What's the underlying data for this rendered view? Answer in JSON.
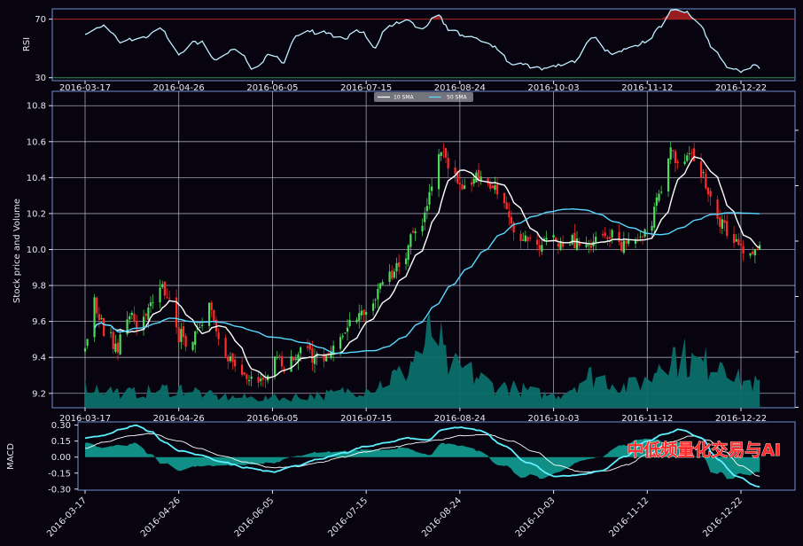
{
  "watermark": "中低频量化交易与AI",
  "colors": {
    "background": "#07040f",
    "frame": "#6f8fd0",
    "grid": "#c8c8d8",
    "rsi_line": "#bfefff",
    "rsi_overbought": "#b22222",
    "rsi_oversold": "#2e8b57",
    "up_candle": "#4ddc5a",
    "down_candle": "#ff2b2b",
    "sma_fast": "#ffffff",
    "sma_slow": "#5ad8ff",
    "volume_fill": "#0b6f6a",
    "macd_line": "#5ff0ff",
    "signal_line": "#ffffff",
    "macd_fill": "#11a89a"
  },
  "chart_data": [
    {
      "type": "line",
      "panel": "rsi",
      "ylabel": "RSI",
      "ylim": [
        28,
        77
      ],
      "yticks": [
        30,
        70
      ],
      "threshold_lines": [
        70,
        30
      ],
      "date_ticks": [
        "2016-03-17",
        "2016-04-26",
        "2016-06-05",
        "2016-07-15",
        "2016-08-24",
        "2016-10-03",
        "2016-11-12",
        "2016-12-22"
      ],
      "x_start": "2016-03-17",
      "x_end": "2016-12-30",
      "series": [
        {
          "anchors": [
            [
              "2016-03-17",
              60
            ],
            [
              "2016-03-25",
              65
            ],
            [
              "2016-04-01",
              55
            ],
            [
              "2016-04-10",
              57
            ],
            [
              "2016-04-18",
              63
            ],
            [
              "2016-04-26",
              47
            ],
            [
              "2016-05-05",
              55
            ],
            [
              "2016-05-12",
              42
            ],
            [
              "2016-05-20",
              50
            ],
            [
              "2016-05-28",
              36
            ],
            [
              "2016-06-05",
              46
            ],
            [
              "2016-06-10",
              40
            ],
            [
              "2016-06-15",
              59
            ],
            [
              "2016-06-25",
              62
            ],
            [
              "2016-07-05",
              57
            ],
            [
              "2016-07-12",
              63
            ],
            [
              "2016-07-18",
              50
            ],
            [
              "2016-07-25",
              65
            ],
            [
              "2016-08-01",
              69
            ],
            [
              "2016-08-08",
              63
            ],
            [
              "2016-08-14",
              74
            ],
            [
              "2016-08-20",
              62
            ],
            [
              "2016-08-28",
              58
            ],
            [
              "2016-09-06",
              52
            ],
            [
              "2016-09-16",
              40
            ],
            [
              "2016-09-25",
              37
            ],
            [
              "2016-10-03",
              38
            ],
            [
              "2016-10-12",
              41
            ],
            [
              "2016-10-20",
              57
            ],
            [
              "2016-10-28",
              46
            ],
            [
              "2016-11-04",
              50
            ],
            [
              "2016-11-12",
              55
            ],
            [
              "2016-11-17",
              65
            ],
            [
              "2016-11-23",
              76
            ],
            [
              "2016-11-28",
              75
            ],
            [
              "2016-12-04",
              67
            ],
            [
              "2016-12-10",
              50
            ],
            [
              "2016-12-16",
              38
            ],
            [
              "2016-12-22",
              35
            ],
            [
              "2016-12-30",
              38
            ]
          ]
        }
      ]
    },
    {
      "type": "candlestick",
      "panel": "price",
      "ylabel": "Stock price and Volume",
      "ylim": [
        9.12,
        10.88
      ],
      "yticks": [
        9.2,
        9.4,
        9.6,
        9.8,
        10.0,
        10.2,
        10.4,
        10.6,
        10.8
      ],
      "grid": true,
      "legend_position": "top-center",
      "date_ticks": [
        "2016-03-17",
        "2016-04-26",
        "2016-06-05",
        "2016-07-15",
        "2016-08-24",
        "2016-10-03",
        "2016-11-12",
        "2016-12-22"
      ],
      "x_start": "2016-03-17",
      "x_end": "2016-12-30",
      "close_anchors": [
        [
          "2016-03-17",
          9.44
        ],
        [
          "2016-03-21",
          9.7
        ],
        [
          "2016-03-25",
          9.57
        ],
        [
          "2016-03-30",
          9.46
        ],
        [
          "2016-04-04",
          9.63
        ],
        [
          "2016-04-09",
          9.6
        ],
        [
          "2016-04-14",
          9.67
        ],
        [
          "2016-04-18",
          9.82
        ],
        [
          "2016-04-22",
          9.73
        ],
        [
          "2016-04-26",
          9.52
        ],
        [
          "2016-04-30",
          9.47
        ],
        [
          "2016-05-04",
          9.53
        ],
        [
          "2016-05-09",
          9.68
        ],
        [
          "2016-05-14",
          9.48
        ],
        [
          "2016-05-18",
          9.37
        ],
        [
          "2016-05-23",
          9.3
        ],
        [
          "2016-05-29",
          9.27
        ],
        [
          "2016-06-03",
          9.28
        ],
        [
          "2016-06-07",
          9.42
        ],
        [
          "2016-06-10",
          9.31
        ],
        [
          "2016-06-14",
          9.38
        ],
        [
          "2016-06-18",
          9.46
        ],
        [
          "2016-06-23",
          9.4
        ],
        [
          "2016-06-28",
          9.43
        ],
        [
          "2016-07-03",
          9.5
        ],
        [
          "2016-07-08",
          9.58
        ],
        [
          "2016-07-13",
          9.66
        ],
        [
          "2016-07-18",
          9.7
        ],
        [
          "2016-07-22",
          9.83
        ],
        [
          "2016-07-26",
          9.86
        ],
        [
          "2016-07-30",
          9.92
        ],
        [
          "2016-08-04",
          10.07
        ],
        [
          "2016-08-08",
          10.16
        ],
        [
          "2016-08-12",
          10.35
        ],
        [
          "2016-08-16",
          10.56
        ],
        [
          "2016-08-20",
          10.46
        ],
        [
          "2016-08-24",
          10.35
        ],
        [
          "2016-08-28",
          10.38
        ],
        [
          "2016-09-02",
          10.4
        ],
        [
          "2016-09-07",
          10.35
        ],
        [
          "2016-09-12",
          10.22
        ],
        [
          "2016-09-17",
          10.07
        ],
        [
          "2016-09-21",
          10.06
        ],
        [
          "2016-09-26",
          10.03
        ],
        [
          "2016-10-03",
          10.05
        ],
        [
          "2016-10-08",
          10.03
        ],
        [
          "2016-10-13",
          10.05
        ],
        [
          "2016-10-18",
          10.02
        ],
        [
          "2016-10-23",
          10.08
        ],
        [
          "2016-10-28",
          10.08
        ],
        [
          "2016-11-02",
          10.03
        ],
        [
          "2016-11-07",
          10.07
        ],
        [
          "2016-11-12",
          10.1
        ],
        [
          "2016-11-17",
          10.3
        ],
        [
          "2016-11-22",
          10.55
        ],
        [
          "2016-11-26",
          10.47
        ],
        [
          "2016-11-30",
          10.52
        ],
        [
          "2016-12-05",
          10.43
        ],
        [
          "2016-12-09",
          10.26
        ],
        [
          "2016-12-14",
          10.13
        ],
        [
          "2016-12-18",
          10.05
        ],
        [
          "2016-12-22",
          10.0
        ],
        [
          "2016-12-26",
          9.99
        ],
        [
          "2016-12-30",
          10.01
        ]
      ],
      "series": [
        {
          "name": "10 SMA",
          "smoothing_days": 10
        },
        {
          "name": "50 SMA",
          "smoothing_days": 50
        }
      ],
      "volume_anchors": [
        [
          "2016-03-17",
          0.2
        ],
        [
          "2016-04-05",
          0.14
        ],
        [
          "2016-04-26",
          0.18
        ],
        [
          "2016-05-15",
          0.1
        ],
        [
          "2016-06-05",
          0.09
        ],
        [
          "2016-06-25",
          0.12
        ],
        [
          "2016-07-15",
          0.18
        ],
        [
          "2016-07-29",
          0.3
        ],
        [
          "2016-08-08",
          0.55
        ],
        [
          "2016-08-13",
          0.75
        ],
        [
          "2016-08-19",
          0.4
        ],
        [
          "2016-08-24",
          0.35
        ],
        [
          "2016-09-10",
          0.2
        ],
        [
          "2016-10-03",
          0.12
        ],
        [
          "2016-10-20",
          0.3
        ],
        [
          "2016-11-04",
          0.2
        ],
        [
          "2016-11-12",
          0.25
        ],
        [
          "2016-11-20",
          0.55
        ],
        [
          "2016-11-26",
          0.48
        ],
        [
          "2016-12-05",
          0.4
        ],
        [
          "2016-12-15",
          0.5
        ],
        [
          "2016-12-22",
          0.25
        ],
        [
          "2016-12-30",
          0.22
        ]
      ]
    },
    {
      "type": "line",
      "panel": "macd",
      "ylabel": "MACD",
      "ylim": [
        -0.31,
        0.33
      ],
      "yticks": [
        0.3,
        0.15,
        0.0,
        -0.15,
        -0.3
      ],
      "date_ticks": [
        "2016-03-17",
        "2016-04-26",
        "2016-06-05",
        "2016-07-15",
        "2016-08-24",
        "2016-10-03",
        "2016-11-12",
        "2016-12-22"
      ],
      "x_start": "2016-03-17",
      "x_end": "2016-12-30",
      "series": [
        {
          "role": "macd",
          "anchors": [
            [
              "2016-03-17",
              0.18
            ],
            [
              "2016-03-25",
              0.2
            ],
            [
              "2016-04-01",
              0.26
            ],
            [
              "2016-04-08",
              0.3
            ],
            [
              "2016-04-14",
              0.24
            ],
            [
              "2016-04-20",
              0.14
            ],
            [
              "2016-04-26",
              0.06
            ],
            [
              "2016-05-05",
              0.02
            ],
            [
              "2016-05-15",
              -0.05
            ],
            [
              "2016-05-25",
              -0.1
            ],
            [
              "2016-06-05",
              -0.14
            ],
            [
              "2016-06-15",
              -0.08
            ],
            [
              "2016-06-25",
              -0.02
            ],
            [
              "2016-07-05",
              0.04
            ],
            [
              "2016-07-15",
              0.1
            ],
            [
              "2016-07-25",
              0.14
            ],
            [
              "2016-08-01",
              0.18
            ],
            [
              "2016-08-10",
              0.16
            ],
            [
              "2016-08-17",
              0.26
            ],
            [
              "2016-08-24",
              0.28
            ],
            [
              "2016-09-02",
              0.25
            ],
            [
              "2016-09-12",
              0.1
            ],
            [
              "2016-09-22",
              -0.05
            ],
            [
              "2016-10-03",
              -0.18
            ],
            [
              "2016-10-13",
              -0.17
            ],
            [
              "2016-10-23",
              -0.13
            ],
            [
              "2016-11-02",
              0.0
            ],
            [
              "2016-11-12",
              0.15
            ],
            [
              "2016-11-20",
              0.22
            ],
            [
              "2016-11-26",
              0.26
            ],
            [
              "2016-12-05",
              0.18
            ],
            [
              "2016-12-12",
              -0.02
            ],
            [
              "2016-12-20",
              -0.18
            ],
            [
              "2016-12-30",
              -0.28
            ]
          ]
        },
        {
          "role": "signal",
          "anchors": [
            [
              "2016-03-17",
              0.08
            ],
            [
              "2016-03-25",
              0.14
            ],
            [
              "2016-04-05",
              0.2
            ],
            [
              "2016-04-14",
              0.22
            ],
            [
              "2016-04-26",
              0.15
            ],
            [
              "2016-05-05",
              0.08
            ],
            [
              "2016-05-15",
              0.01
            ],
            [
              "2016-05-25",
              -0.05
            ],
            [
              "2016-06-05",
              -0.1
            ],
            [
              "2016-06-15",
              -0.09
            ],
            [
              "2016-06-25",
              -0.05
            ],
            [
              "2016-07-05",
              0.0
            ],
            [
              "2016-07-15",
              0.05
            ],
            [
              "2016-07-25",
              0.09
            ],
            [
              "2016-08-05",
              0.13
            ],
            [
              "2016-08-15",
              0.16
            ],
            [
              "2016-08-24",
              0.2
            ],
            [
              "2016-09-05",
              0.21
            ],
            [
              "2016-09-15",
              0.15
            ],
            [
              "2016-09-25",
              0.05
            ],
            [
              "2016-10-05",
              -0.08
            ],
            [
              "2016-10-15",
              -0.14
            ],
            [
              "2016-10-25",
              -0.13
            ],
            [
              "2016-11-04",
              -0.07
            ],
            [
              "2016-11-12",
              0.03
            ],
            [
              "2016-11-22",
              0.14
            ],
            [
              "2016-12-01",
              0.2
            ],
            [
              "2016-12-08",
              0.16
            ],
            [
              "2016-12-15",
              0.05
            ],
            [
              "2016-12-22",
              -0.08
            ],
            [
              "2016-12-30",
              -0.18
            ]
          ]
        }
      ]
    }
  ]
}
